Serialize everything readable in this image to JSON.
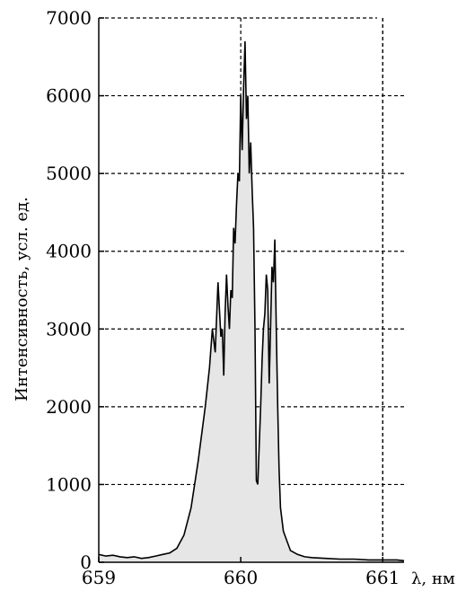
{
  "chart_data": {
    "type": "area",
    "title": "",
    "xlabel": "λ, нм",
    "ylabel": "Интенсивность, усл. ед.",
    "xlim": [
      659,
      661.15
    ],
    "ylim": [
      0,
      7000
    ],
    "x_ticks": [
      "659",
      "660",
      "661"
    ],
    "y_ticks": [
      "0",
      "1000",
      "2000",
      "3000",
      "4000",
      "5000",
      "6000",
      "7000"
    ],
    "grid": true,
    "fill_color": "#e6e6e6",
    "line_color": "#000000",
    "series": [
      {
        "x": [
          659.0,
          659.05,
          659.1,
          659.15,
          659.2,
          659.25,
          659.3,
          659.35,
          659.4,
          659.45,
          659.5,
          659.55,
          659.6,
          659.65,
          659.7,
          659.75,
          659.78,
          659.8,
          659.82,
          659.84,
          659.86,
          659.87,
          659.88,
          659.89,
          659.9,
          659.91,
          659.92,
          659.93,
          659.94,
          659.95,
          659.96,
          659.97,
          659.98,
          659.99,
          660.0,
          660.01,
          660.02,
          660.03,
          660.04,
          660.05,
          660.06,
          660.07,
          660.08,
          660.09,
          660.1,
          660.11,
          660.12,
          660.13,
          660.14,
          660.15,
          660.16,
          660.17,
          660.18,
          660.19,
          660.2,
          660.21,
          660.22,
          660.23,
          660.24,
          660.25,
          660.26,
          660.27,
          660.28,
          660.3,
          660.32,
          660.35,
          660.4,
          660.45,
          660.5,
          660.6,
          660.7,
          660.8,
          660.9,
          661.0,
          661.1,
          661.15
        ],
        "values": [
          100,
          80,
          90,
          70,
          60,
          70,
          50,
          60,
          80,
          100,
          120,
          180,
          350,
          700,
          1300,
          2000,
          2500,
          3000,
          2700,
          3600,
          2900,
          3000,
          2400,
          3200,
          3700,
          3300,
          3000,
          3500,
          3400,
          4300,
          4100,
          4600,
          5000,
          4900,
          6000,
          5300,
          6100,
          6700,
          5700,
          6000,
          5000,
          5400,
          4800,
          4300,
          3000,
          1050,
          1000,
          1500,
          2000,
          2600,
          3000,
          3200,
          3700,
          3500,
          2300,
          3000,
          3800,
          3600,
          4150,
          3000,
          2000,
          1200,
          700,
          400,
          300,
          150,
          100,
          70,
          60,
          50,
          40,
          40,
          30,
          30,
          30,
          20
        ]
      }
    ]
  }
}
